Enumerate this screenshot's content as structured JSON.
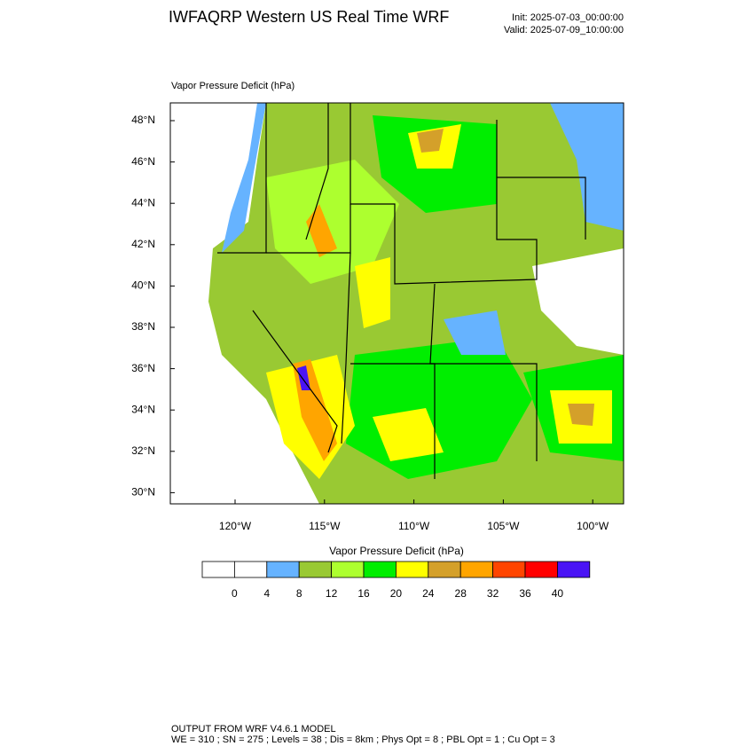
{
  "header": {
    "title": "IWFAQRP Western US Real Time WRF",
    "init": "Init: 2025-07-03_00:00:00",
    "valid": "Valid: 2025-07-09_10:00:00"
  },
  "map": {
    "field_label": "Vapor Pressure Deficit   (hPa)",
    "lat_labels": [
      "48°N",
      "46°N",
      "44°N",
      "42°N",
      "40°N",
      "38°N",
      "36°N",
      "34°N",
      "32°N",
      "30°N"
    ],
    "lon_labels": [
      "120°W",
      "115°W",
      "110°W",
      "105°W",
      "100°W"
    ]
  },
  "colorbar": {
    "title": "Vapor Pressure Deficit  (hPa)",
    "labels": [
      "0",
      "4",
      "8",
      "12",
      "16",
      "20",
      "24",
      "28",
      "32",
      "36",
      "40"
    ],
    "colors": [
      "#ffffff",
      "#ffffff",
      "#66b3ff",
      "#99c933",
      "#adff2f",
      "#00ee00",
      "#ffff00",
      "#d4a02a",
      "#ffa500",
      "#ff4500",
      "#ff0000",
      "#4a14f5"
    ]
  },
  "footer": {
    "line1": "OUTPUT FROM WRF V4.6.1 MODEL",
    "line2": "WE = 310 ; SN = 275 ; Levels = 38 ; Dis = 8km ; Phys Opt = 8 ; PBL Opt = 1 ; Cu Opt = 3"
  }
}
